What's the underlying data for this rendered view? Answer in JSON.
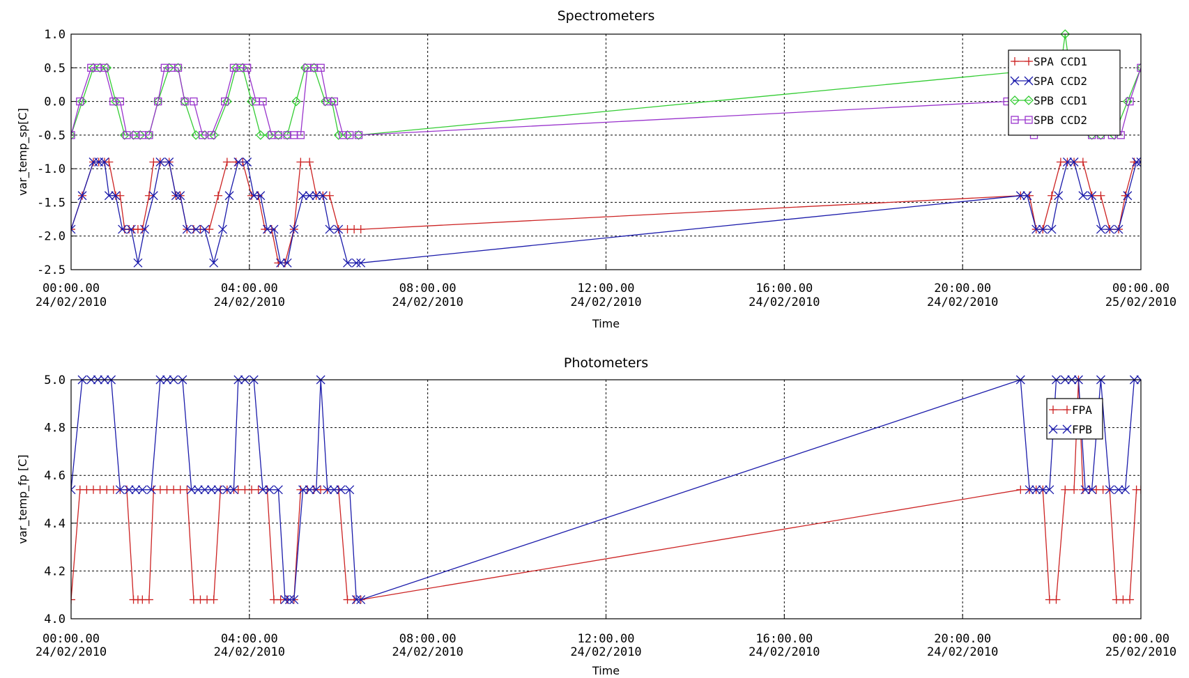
{
  "chart_data": [
    {
      "type": "line",
      "title": "Spectrometers",
      "xlabel": "Time",
      "ylabel": "var_temp_sp[C]",
      "ylim": [
        -2.5,
        1.0
      ],
      "yticks": [
        "1.0",
        "0.5",
        "0.0",
        "-0.5",
        "-1.0",
        "-1.5",
        "-2.0",
        "-2.5"
      ],
      "xlim_hours": [
        0,
        24
      ],
      "xticks": [
        {
          "time": "00:00.00",
          "date": "24/02/2010"
        },
        {
          "time": "04:00.00",
          "date": "24/02/2010"
        },
        {
          "time": "08:00.00",
          "date": "24/02/2010"
        },
        {
          "time": "12:00.00",
          "date": "24/02/2010"
        },
        {
          "time": "16:00.00",
          "date": "24/02/2010"
        },
        {
          "time": "20:00.00",
          "date": "24/02/2010"
        },
        {
          "time": "00:00.00",
          "date": "25/02/2010"
        }
      ],
      "grid": true,
      "legend_position": "top-right",
      "series": [
        {
          "name": "SPA CCD1",
          "color": "#cc2222",
          "marker": "plus",
          "x": [
            0,
            0.25,
            0.5,
            0.62,
            0.75,
            0.85,
            1.0,
            1.1,
            1.2,
            1.3,
            1.4,
            1.5,
            1.6,
            1.75,
            1.85,
            2.0,
            2.2,
            2.35,
            2.45,
            2.6,
            2.75,
            2.9,
            3.1,
            3.3,
            3.5,
            3.7,
            3.85,
            4.05,
            4.2,
            4.35,
            4.5,
            4.65,
            4.8,
            5.0,
            5.15,
            5.35,
            5.5,
            5.65,
            5.8,
            6.0,
            6.2,
            6.35,
            6.5,
            21.3,
            21.5,
            21.65,
            21.8,
            22.0,
            22.2,
            22.35,
            22.5,
            22.7,
            22.9,
            23.1,
            23.3,
            23.5,
            23.65,
            23.85,
            24.0
          ],
          "y": [
            -1.9,
            -1.4,
            -0.9,
            -0.9,
            -0.9,
            -0.9,
            -1.4,
            -1.4,
            -1.9,
            -1.9,
            -1.9,
            -1.9,
            -1.9,
            -1.4,
            -0.9,
            -0.9,
            -0.9,
            -1.4,
            -1.4,
            -1.9,
            -1.9,
            -1.9,
            -1.9,
            -1.4,
            -0.9,
            -0.9,
            -0.9,
            -1.4,
            -1.4,
            -1.9,
            -1.9,
            -2.4,
            -2.4,
            -1.9,
            -0.9,
            -0.9,
            -1.4,
            -1.4,
            -1.4,
            -1.9,
            -1.9,
            -1.9,
            -1.9,
            -1.4,
            -1.4,
            -1.9,
            -1.9,
            -1.4,
            -0.9,
            -0.9,
            -0.9,
            -0.9,
            -1.4,
            -1.4,
            -1.9,
            -1.9,
            -1.4,
            -0.9,
            -0.9
          ]
        },
        {
          "name": "SPA CCD2",
          "color": "#1a1aaa",
          "marker": "x",
          "x": [
            0,
            0.25,
            0.5,
            0.62,
            0.75,
            0.85,
            1.0,
            1.15,
            1.35,
            1.5,
            1.65,
            1.85,
            2.0,
            2.2,
            2.35,
            2.45,
            2.6,
            2.8,
            3.0,
            3.2,
            3.4,
            3.55,
            3.75,
            3.95,
            4.1,
            4.25,
            4.4,
            4.55,
            4.7,
            4.85,
            5.0,
            5.2,
            5.35,
            5.5,
            5.65,
            5.8,
            6.0,
            6.2,
            6.4,
            6.5,
            21.3,
            21.45,
            21.65,
            21.8,
            22.0,
            22.15,
            22.35,
            22.5,
            22.7,
            22.9,
            23.1,
            23.3,
            23.5,
            23.7,
            23.9,
            24.0
          ],
          "y": [
            -1.9,
            -1.4,
            -0.9,
            -0.9,
            -0.9,
            -1.4,
            -1.4,
            -1.9,
            -1.9,
            -2.4,
            -1.9,
            -1.4,
            -0.9,
            -0.9,
            -1.4,
            -1.4,
            -1.9,
            -1.9,
            -1.9,
            -2.4,
            -1.9,
            -1.4,
            -0.9,
            -0.9,
            -1.4,
            -1.4,
            -1.9,
            -1.9,
            -2.4,
            -2.4,
            -1.9,
            -1.4,
            -1.4,
            -1.4,
            -1.4,
            -1.9,
            -1.9,
            -2.4,
            -2.4,
            -2.4,
            -1.4,
            -1.4,
            -1.9,
            -1.9,
            -1.9,
            -1.4,
            -0.9,
            -0.9,
            -1.4,
            -1.4,
            -1.9,
            -1.9,
            -1.9,
            -1.4,
            -0.9,
            -0.9
          ]
        },
        {
          "name": "SPB CCD1",
          "color": "#33cc33",
          "marker": "diamond",
          "x": [
            0,
            0.25,
            0.5,
            0.65,
            0.8,
            1.0,
            1.2,
            1.4,
            1.55,
            1.75,
            1.95,
            2.2,
            2.4,
            2.55,
            2.8,
            3.0,
            3.2,
            3.5,
            3.7,
            3.85,
            4.05,
            4.25,
            4.45,
            4.65,
            4.85,
            5.05,
            5.25,
            5.45,
            5.7,
            5.85,
            6.0,
            6.2,
            6.45,
            22.2,
            22.3,
            22.4,
            22.7,
            22.9,
            23.1,
            23.4,
            23.7,
            24.0
          ],
          "y": [
            -0.5,
            0.0,
            0.5,
            0.5,
            0.5,
            0.0,
            -0.5,
            -0.5,
            -0.5,
            -0.5,
            0.0,
            0.5,
            0.5,
            0.0,
            -0.5,
            -0.5,
            -0.5,
            0.0,
            0.5,
            0.5,
            0.0,
            -0.5,
            -0.5,
            -0.5,
            -0.5,
            0.0,
            0.5,
            0.5,
            0.0,
            0.0,
            -0.5,
            -0.5,
            -0.5,
            0.5,
            1.0,
            0.5,
            0.0,
            -0.5,
            -0.5,
            -0.5,
            0.0,
            0.5
          ]
        },
        {
          "name": "SPB CCD2",
          "color": "#9933cc",
          "marker": "square",
          "x": [
            0,
            0.2,
            0.45,
            0.6,
            0.75,
            0.95,
            1.1,
            1.25,
            1.45,
            1.6,
            1.75,
            1.95,
            2.1,
            2.25,
            2.4,
            2.55,
            2.75,
            2.95,
            3.15,
            3.45,
            3.65,
            3.8,
            3.95,
            4.15,
            4.3,
            4.5,
            4.65,
            4.85,
            5.0,
            5.15,
            5.3,
            5.45,
            5.6,
            5.75,
            5.9,
            6.1,
            6.25,
            6.45,
            21.0,
            21.4,
            21.6,
            22.2,
            22.4,
            22.7,
            22.9,
            23.1,
            23.35,
            23.55,
            23.75,
            24.0
          ],
          "y": [
            -0.5,
            0.0,
            0.5,
            0.5,
            0.5,
            0.0,
            0.0,
            -0.5,
            -0.5,
            -0.5,
            -0.5,
            0.0,
            0.5,
            0.5,
            0.5,
            0.0,
            0.0,
            -0.5,
            -0.5,
            0.0,
            0.5,
            0.5,
            0.5,
            0.0,
            0.0,
            -0.5,
            -0.5,
            -0.5,
            -0.5,
            -0.5,
            0.5,
            0.5,
            0.5,
            0.0,
            0.0,
            -0.5,
            -0.5,
            -0.5,
            0.0,
            0.0,
            -0.5,
            0.5,
            0.5,
            0.0,
            -0.5,
            -0.5,
            -0.5,
            -0.5,
            0.0,
            0.5
          ]
        }
      ]
    },
    {
      "type": "line",
      "title": "Photometers",
      "xlabel": "Time",
      "ylabel": "var_temp_fp [C]",
      "ylim": [
        4.0,
        5.0
      ],
      "yticks": [
        "5.0",
        "4.8",
        "4.6",
        "4.4",
        "4.2",
        "4.0"
      ],
      "xlim_hours": [
        0,
        24
      ],
      "xticks": [
        {
          "time": "00:00.00",
          "date": "24/02/2010"
        },
        {
          "time": "04:00.00",
          "date": "24/02/2010"
        },
        {
          "time": "08:00.00",
          "date": "24/02/2010"
        },
        {
          "time": "12:00.00",
          "date": "24/02/2010"
        },
        {
          "time": "16:00.00",
          "date": "24/02/2010"
        },
        {
          "time": "20:00.00",
          "date": "24/02/2010"
        },
        {
          "time": "00:00.00",
          "date": "25/02/2010"
        }
      ],
      "grid": true,
      "legend_position": "top-right",
      "series": [
        {
          "name": "FPA",
          "color": "#cc2222",
          "marker": "plus",
          "x": [
            0,
            0.2,
            0.35,
            0.5,
            0.65,
            0.8,
            0.95,
            1.1,
            1.25,
            1.4,
            1.5,
            1.6,
            1.75,
            1.85,
            2.0,
            2.15,
            2.3,
            2.45,
            2.6,
            2.75,
            2.9,
            3.05,
            3.2,
            3.35,
            3.5,
            3.65,
            3.75,
            3.9,
            4.05,
            4.2,
            4.4,
            4.55,
            4.7,
            4.85,
            5.0,
            5.15,
            5.3,
            5.45,
            5.6,
            5.75,
            6.0,
            6.2,
            6.35,
            6.5,
            21.3,
            21.5,
            21.65,
            21.8,
            21.95,
            22.1,
            22.3,
            22.5,
            22.6,
            22.7,
            22.85,
            23.0,
            23.15,
            23.3,
            23.45,
            23.6,
            23.75,
            23.9,
            24.0
          ],
          "y": [
            4.08,
            4.54,
            4.54,
            4.54,
            4.54,
            4.54,
            4.54,
            4.54,
            4.54,
            4.08,
            4.08,
            4.08,
            4.08,
            4.54,
            4.54,
            4.54,
            4.54,
            4.54,
            4.54,
            4.08,
            4.08,
            4.08,
            4.08,
            4.54,
            4.54,
            4.54,
            4.54,
            4.54,
            4.54,
            4.54,
            4.54,
            4.08,
            4.08,
            4.08,
            4.08,
            4.54,
            4.54,
            4.54,
            4.54,
            4.54,
            4.54,
            4.08,
            4.08,
            4.08,
            4.54,
            4.54,
            4.54,
            4.54,
            4.08,
            4.08,
            4.54,
            4.54,
            5.0,
            4.54,
            4.54,
            4.54,
            4.54,
            4.54,
            4.08,
            4.08,
            4.08,
            4.54,
            4.54
          ]
        },
        {
          "name": "FPB",
          "color": "#1a1aaa",
          "marker": "x",
          "x": [
            0,
            0.25,
            0.45,
            0.6,
            0.75,
            0.9,
            1.1,
            1.3,
            1.45,
            1.6,
            1.8,
            2.0,
            2.15,
            2.3,
            2.5,
            2.7,
            2.85,
            3.0,
            3.15,
            3.3,
            3.5,
            3.65,
            3.75,
            3.9,
            4.1,
            4.3,
            4.45,
            4.65,
            4.8,
            4.9,
            5.0,
            5.2,
            5.35,
            5.5,
            5.6,
            5.75,
            5.9,
            6.05,
            6.25,
            6.4,
            6.5,
            21.3,
            21.5,
            21.65,
            21.8,
            21.95,
            22.1,
            22.3,
            22.45,
            22.6,
            22.75,
            22.9,
            23.1,
            23.3,
            23.5,
            23.65,
            23.85,
            24.0
          ],
          "y": [
            4.54,
            5.0,
            5.0,
            5.0,
            5.0,
            5.0,
            4.54,
            4.54,
            4.54,
            4.54,
            4.54,
            5.0,
            5.0,
            5.0,
            5.0,
            4.54,
            4.54,
            4.54,
            4.54,
            4.54,
            4.54,
            4.54,
            5.0,
            5.0,
            5.0,
            4.54,
            4.54,
            4.54,
            4.08,
            4.08,
            4.08,
            4.54,
            4.54,
            4.54,
            5.0,
            4.54,
            4.54,
            4.54,
            4.54,
            4.08,
            4.08,
            5.0,
            4.54,
            4.54,
            4.54,
            4.54,
            5.0,
            5.0,
            5.0,
            5.0,
            4.54,
            4.54,
            5.0,
            4.54,
            4.54,
            4.54,
            5.0,
            5.0
          ]
        }
      ]
    }
  ]
}
